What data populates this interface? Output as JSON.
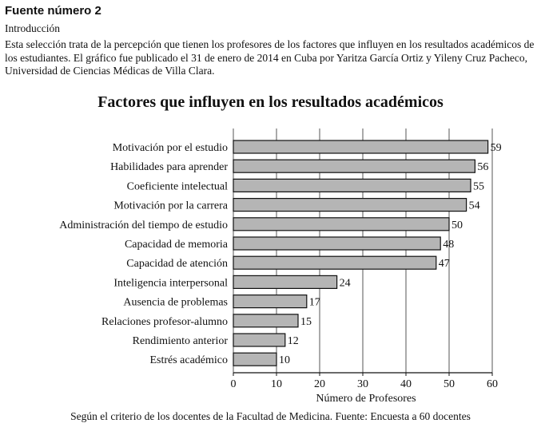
{
  "header": {
    "source_title": "Fuente número 2",
    "intro_label": "Introducción",
    "intro_text": "Esta selección trata de la percepción que tienen los profesores de los factores que influyen en los resultados académicos de los estudiantes. El gráfico fue publicado el 31 de enero de 2014 en Cuba por Yaritza García Ortiz y Yileny Cruz Pacheco, Universidad de Ciencias Médicas de Villa Clara."
  },
  "chart_data": {
    "type": "bar",
    "orientation": "horizontal",
    "title": "Factores que influyen en los resultados académicos",
    "xlabel": "Número de Profesores",
    "ylabel": "",
    "categories": [
      "Motivación por el estudio",
      "Habilidades para aprender",
      "Coeficiente intelectual",
      "Motivación por la carrera",
      "Administración del tiempo de estudio",
      "Capacidad de memoria",
      "Capacidad de atención",
      "Inteligencia interpersonal",
      "Ausencia de problemas",
      "Relaciones profesor-alumno",
      "Rendimiento anterior",
      "Estrés académico"
    ],
    "values": [
      59,
      56,
      55,
      54,
      50,
      48,
      47,
      24,
      17,
      15,
      12,
      10
    ],
    "xlim": [
      0,
      60
    ],
    "xticks": [
      0,
      10,
      20,
      30,
      40,
      50,
      60
    ],
    "grid": true,
    "bar_color": "#b5b5b5"
  },
  "footer": {
    "note": "Según el criterio de los docentes de la Facultad de Medicina. Fuente: Encuesta a 60 docentes"
  }
}
